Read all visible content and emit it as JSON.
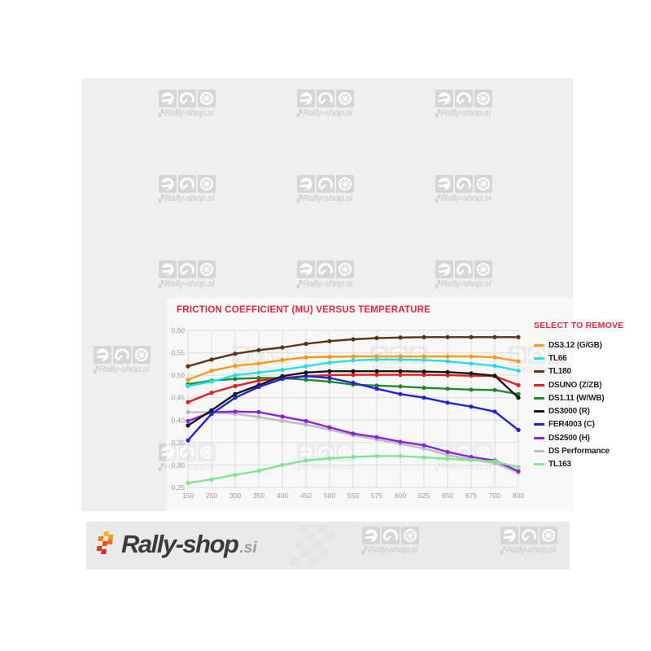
{
  "chart": {
    "title": "FRICTION COEFFICIENT (MU) VERSUS TEMPERATURE"
  },
  "legend": {
    "header": "SELECT TO REMOVE",
    "items": [
      {
        "label": "DS3.12 (G/GB)",
        "color": "#f89a1c"
      },
      {
        "label": "TL66",
        "color": "#25dfe3"
      },
      {
        "label": "TL180",
        "color": "#5b3317"
      },
      {
        "label": "DSUNO (Z/ZB)",
        "color": "#e31e1e"
      },
      {
        "label": "DS1.11 (W/WB)",
        "color": "#1d8a31"
      },
      {
        "label": "DS3000 (R)",
        "color": "#161616"
      },
      {
        "label": "FER4003 (C)",
        "color": "#2222d6"
      },
      {
        "label": "DS2500 (H)",
        "color": "#8c22dd"
      },
      {
        "label": "DS Performance",
        "color": "#bdbdbd"
      },
      {
        "label": "TL163",
        "color": "#7fe691"
      }
    ]
  },
  "chart_data": {
    "type": "line",
    "title": "FRICTION COEFFICIENT (MU) VERSUS TEMPERATURE",
    "categories": [
      "150",
      "250",
      "300",
      "350",
      "400",
      "450",
      "500",
      "550",
      "575",
      "600",
      "625",
      "650",
      "675",
      "700",
      "800"
    ],
    "ylim": [
      0.25,
      0.6
    ],
    "ytick_values": [
      0.6,
      0.55,
      0.5,
      0.45,
      0.4,
      0.35,
      0.3,
      0.25
    ],
    "ytick_labels": [
      "0,60",
      "0,55",
      "0,50",
      "0,45",
      "0,40",
      "0,35",
      "0,30",
      "0,25"
    ],
    "grid": true,
    "legend_position": "right",
    "marker": "circle",
    "series": [
      {
        "name": "DS Performance",
        "color": "#bdbdbd",
        "values": [
          0.418,
          0.417,
          0.414,
          0.407,
          0.398,
          0.39,
          0.379,
          0.366,
          0.357,
          0.347,
          0.337,
          0.322,
          0.313,
          0.304,
          0.283
        ]
      },
      {
        "name": "DS2500 (H)",
        "color": "#8c22dd",
        "values": [
          0.398,
          0.418,
          0.419,
          0.418,
          0.408,
          0.398,
          0.384,
          0.37,
          0.362,
          0.352,
          0.344,
          0.329,
          0.318,
          0.31,
          0.286
        ]
      },
      {
        "name": "TL163",
        "color": "#7fe691",
        "values": [
          0.26,
          0.268,
          0.278,
          0.287,
          0.3,
          0.31,
          0.315,
          0.318,
          0.32,
          0.32,
          0.317,
          0.314,
          0.311,
          0.308,
          0.295
        ]
      },
      {
        "name": "DS1.11 (W/WB)",
        "color": "#1d8a31",
        "values": [
          0.48,
          0.488,
          0.492,
          0.494,
          0.494,
          0.49,
          0.486,
          0.479,
          0.477,
          0.475,
          0.472,
          0.47,
          0.468,
          0.467,
          0.458
        ]
      },
      {
        "name": "DSUNO (Z/ZB)",
        "color": "#e31e1e",
        "values": [
          0.44,
          0.461,
          0.476,
          0.488,
          0.494,
          0.498,
          0.5,
          0.501,
          0.501,
          0.501,
          0.501,
          0.5,
          0.499,
          0.498,
          0.478
        ]
      },
      {
        "name": "TL66",
        "color": "#25dfe3",
        "values": [
          0.476,
          0.486,
          0.5,
          0.506,
          0.512,
          0.52,
          0.528,
          0.533,
          0.535,
          0.535,
          0.534,
          0.531,
          0.526,
          0.521,
          0.51
        ]
      },
      {
        "name": "DS3.12 (G/GB)",
        "color": "#f89a1c",
        "values": [
          0.49,
          0.51,
          0.521,
          0.526,
          0.534,
          0.54,
          0.541,
          0.542,
          0.542,
          0.542,
          0.542,
          0.542,
          0.542,
          0.54,
          0.531
        ]
      },
      {
        "name": "DS3000 (R)",
        "color": "#161616",
        "values": [
          0.388,
          0.422,
          0.458,
          0.478,
          0.498,
          0.506,
          0.509,
          0.509,
          0.509,
          0.509,
          0.508,
          0.507,
          0.504,
          0.499,
          0.45
        ]
      },
      {
        "name": "FER4003 (C)",
        "color": "#2222d6",
        "values": [
          0.355,
          0.414,
          0.45,
          0.474,
          0.492,
          0.498,
          0.494,
          0.483,
          0.47,
          0.458,
          0.45,
          0.439,
          0.43,
          0.419,
          0.378
        ]
      },
      {
        "name": "TL180",
        "color": "#5b3317",
        "values": [
          0.52,
          0.535,
          0.548,
          0.556,
          0.562,
          0.57,
          0.576,
          0.58,
          0.583,
          0.584,
          0.585,
          0.585,
          0.585,
          0.585,
          0.585
        ]
      }
    ]
  },
  "watermark": {
    "flag": "▞",
    "text": "Rally-shop.si"
  },
  "footer": {
    "logo_main": "Rally-shop",
    "logo_suffix": ".si"
  }
}
